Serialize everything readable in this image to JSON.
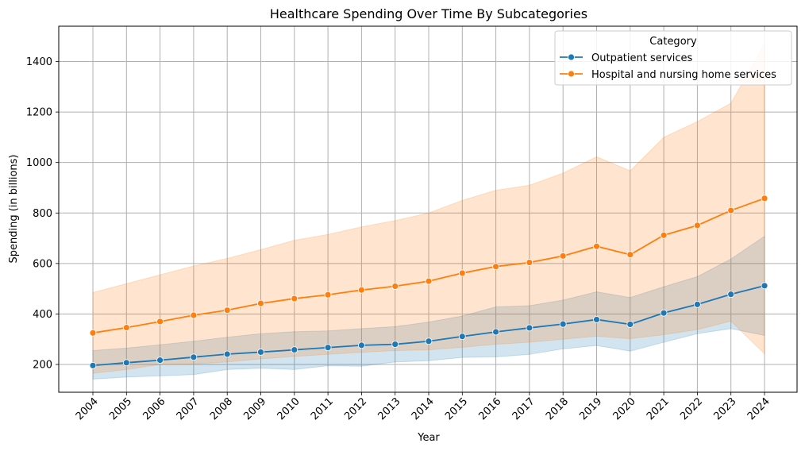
{
  "chart_data": {
    "type": "line",
    "title": "Healthcare Spending Over Time By Subcategories",
    "xlabel": "Year",
    "ylabel": "Spending (in billions)",
    "x": [
      "2004",
      "2005",
      "2006",
      "2007",
      "2008",
      "2009",
      "2010",
      "2011",
      "2012",
      "2013",
      "2014",
      "2015",
      "2016",
      "2017",
      "2018",
      "2019",
      "2020",
      "2021",
      "2022",
      "2023",
      "2024"
    ],
    "ylim": [
      90,
      1540
    ],
    "yticks": [
      200,
      400,
      600,
      800,
      1000,
      1200,
      1400
    ],
    "grid": true,
    "legend": {
      "title": "Category",
      "placement": "top-right"
    },
    "series": [
      {
        "name": "Outpatient services",
        "color": "#1f77b4",
        "values": [
          196,
          207,
          217,
          229,
          241,
          249,
          258,
          267,
          276,
          280,
          292,
          311,
          329,
          345,
          360,
          378,
          359,
          404,
          438,
          478,
          512
        ],
        "band_upper": [
          255,
          265,
          278,
          292,
          308,
          322,
          330,
          333,
          342,
          350,
          368,
          392,
          428,
          433,
          455,
          488,
          465,
          508,
          548,
          618,
          708
        ],
        "band_lower": [
          142,
          150,
          155,
          160,
          180,
          185,
          180,
          195,
          193,
          210,
          215,
          228,
          230,
          240,
          262,
          275,
          253,
          288,
          322,
          342,
          315
        ]
      },
      {
        "name": "Hospital and nursing home services",
        "color": "#ff7f0e",
        "values": [
          325,
          346,
          370,
          395,
          415,
          442,
          461,
          476,
          495,
          510,
          530,
          562,
          588,
          604,
          630,
          668,
          635,
          712,
          751,
          810,
          858
        ],
        "band_upper": [
          485,
          520,
          555,
          590,
          620,
          655,
          692,
          715,
          745,
          770,
          800,
          850,
          890,
          910,
          958,
          1023,
          967,
          1100,
          1162,
          1235,
          1470
        ],
        "band_lower": [
          165,
          180,
          200,
          202,
          210,
          222,
          232,
          240,
          248,
          255,
          258,
          268,
          280,
          288,
          300,
          312,
          302,
          318,
          338,
          372,
          242
        ]
      }
    ]
  }
}
